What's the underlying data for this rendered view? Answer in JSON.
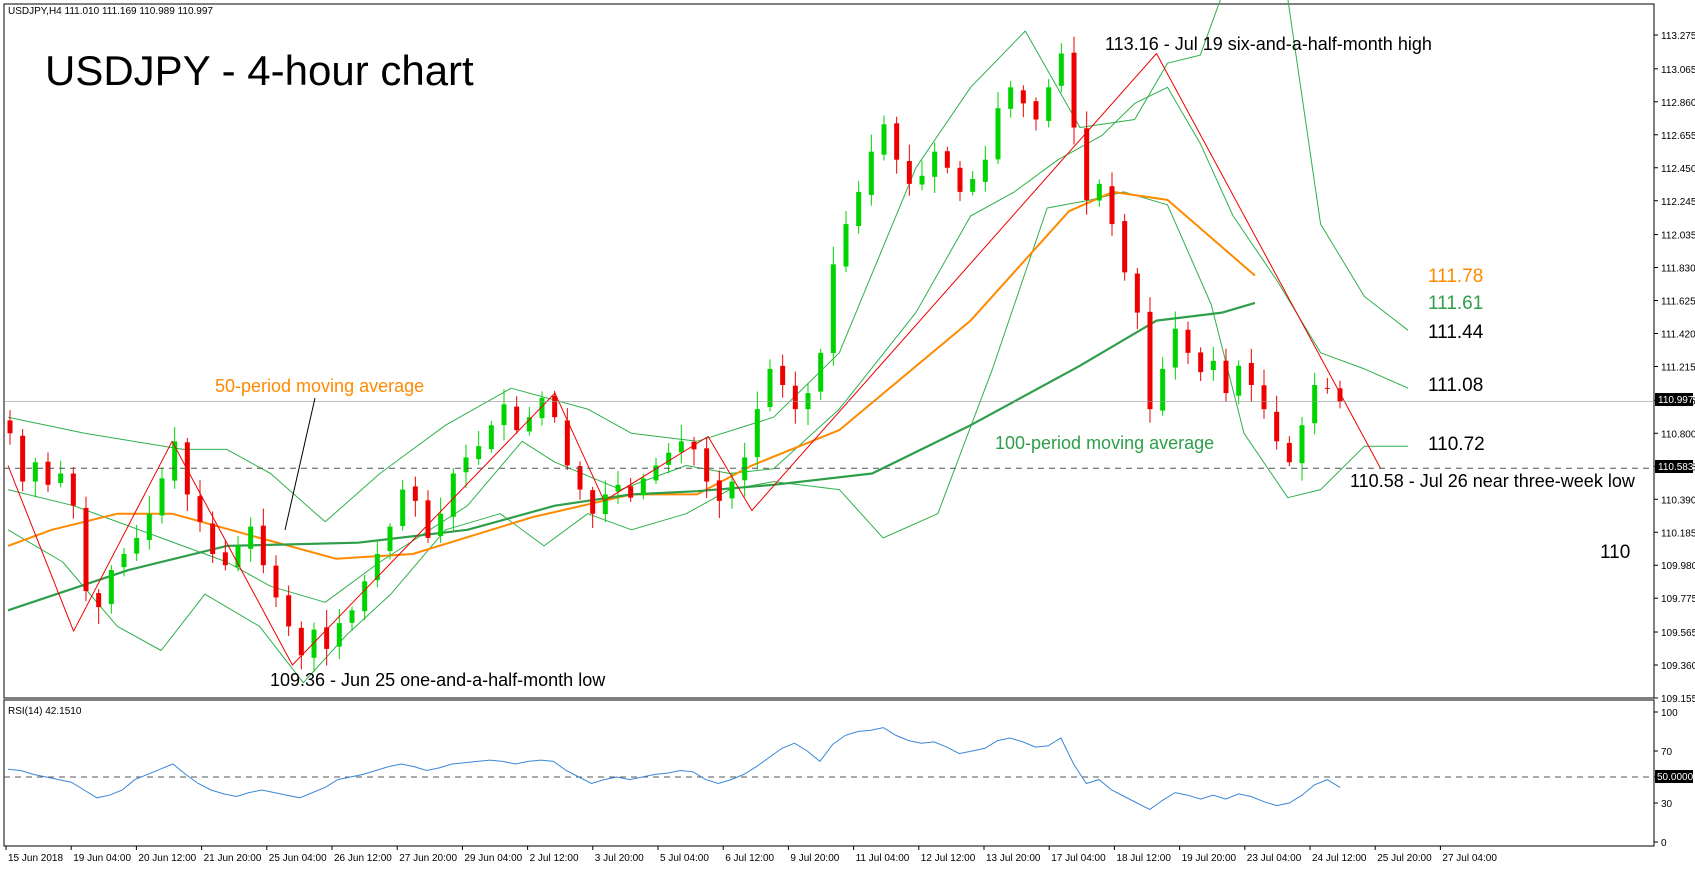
{
  "header": {
    "symbol_info": "USDJPY,H4  111.010 111.169 110.989 110.997",
    "title": "USDJPY - 4-hour chart"
  },
  "colors": {
    "bull": "#00d400",
    "bear": "#ee0000",
    "ma50": "#ff8a00",
    "ma100": "#2e9e4a",
    "bollinger": "#2eb04a",
    "rsi": "#3b87d6",
    "trendline": "#ee0000"
  },
  "annotations": {
    "high": "113.16 - Jul 19 six-and-a-half-month high",
    "low": "109.36 - Jun 25 one-and-a-half-month low",
    "near_low": "110.58 - Jul 26 near three-week low",
    "ma50_label": "50-period moving average",
    "ma100_label": "100-period moving average",
    "lvl_ma50": "111.78",
    "lvl_ma100": "111.61",
    "lvl_upper": "111.44",
    "lvl_mid": "111.08",
    "lvl_lower": "110.72",
    "lvl_110": "110"
  },
  "price_tags": {
    "current": "110.997",
    "line": "110.583"
  },
  "rsi": {
    "label": "RSI(14) 42.1510",
    "fifty_tag": "50.0000"
  },
  "chart_data": {
    "type": "candlestick",
    "title": "USDJPY - 4-hour chart",
    "y_ticks": [
      "113.275",
      "113.065",
      "112.860",
      "112.655",
      "112.450",
      "112.245",
      "112.035",
      "111.830",
      "111.625",
      "111.420",
      "111.215",
      "111.005",
      "110.800",
      "110.595",
      "110.390",
      "110.185",
      "109.980",
      "109.775",
      "109.565",
      "109.360",
      "109.155"
    ],
    "ylim": [
      109.155,
      113.275
    ],
    "x_ticks": [
      "15 Jun 2018",
      "19 Jun 04:00",
      "20 Jun 12:00",
      "21 Jun 20:00",
      "25 Jun 04:00",
      "26 Jun 12:00",
      "27 Jun 20:00",
      "29 Jun 04:00",
      "2 Jul 12:00",
      "3 Jul 20:00",
      "5 Jul 04:00",
      "6 Jul 12:00",
      "9 Jul 20:00",
      "11 Jul 04:00",
      "12 Jul 12:00",
      "13 Jul 20:00",
      "17 Jul 04:00",
      "18 Jul 12:00",
      "19 Jul 20:00",
      "23 Jul 04:00",
      "24 Jul 12:00",
      "25 Jul 20:00",
      "27 Jul 04:00"
    ],
    "close_path": [
      110.8,
      110.5,
      110.62,
      110.48,
      110.55,
      110.35,
      109.82,
      109.72,
      109.95,
      110.05,
      110.15,
      110.3,
      110.52,
      110.75,
      110.42,
      110.25,
      110.05,
      109.98,
      110.1,
      110.22,
      109.98,
      109.78,
      109.6,
      109.42,
      109.58,
      109.46,
      109.62,
      109.7,
      109.88,
      110.05,
      110.22,
      110.45,
      110.38,
      110.15,
      110.3,
      110.55,
      110.65,
      110.72,
      110.85,
      110.98,
      110.82,
      110.9,
      111.02,
      110.9,
      110.6,
      110.45,
      110.3,
      110.42,
      110.48,
      110.4,
      110.52,
      110.6,
      110.68,
      110.75,
      110.7,
      110.5,
      110.38,
      110.5,
      110.65,
      110.95,
      111.2,
      111.1,
      110.95,
      111.05,
      111.3,
      111.85,
      112.1,
      112.3,
      112.55,
      112.72,
      112.5,
      112.35,
      112.4,
      112.55,
      112.45,
      112.3,
      112.38,
      112.5,
      112.82,
      112.95,
      112.85,
      112.75,
      112.95,
      113.16,
      112.7,
      112.25,
      112.35,
      112.1,
      111.8,
      111.55,
      110.95,
      111.2,
      111.45,
      111.3,
      111.18,
      111.25,
      111.05,
      111.22,
      111.1,
      110.95,
      110.75,
      110.62,
      110.85,
      111.1,
      111.08,
      110.997
    ],
    "ma50": [
      [
        110.1,
        0
      ],
      [
        110.2,
        40
      ],
      [
        110.3,
        100
      ],
      [
        110.3,
        150
      ],
      [
        110.15,
        230
      ],
      [
        110.02,
        300
      ],
      [
        110.05,
        370
      ],
      [
        110.28,
        480
      ],
      [
        110.42,
        570
      ],
      [
        110.42,
        630
      ],
      [
        110.6,
        680
      ],
      [
        110.82,
        760
      ],
      [
        111.5,
        880
      ],
      [
        112.18,
        970
      ],
      [
        112.3,
        1010
      ],
      [
        112.25,
        1060
      ],
      [
        111.78,
        1140
      ]
    ],
    "ma100": [
      [
        109.7,
        0
      ],
      [
        109.95,
        110
      ],
      [
        110.1,
        200
      ],
      [
        110.12,
        320
      ],
      [
        110.2,
        420
      ],
      [
        110.35,
        500
      ],
      [
        110.42,
        570
      ],
      [
        110.44,
        630
      ],
      [
        110.48,
        700
      ],
      [
        110.55,
        790
      ],
      [
        110.85,
        880
      ],
      [
        111.22,
        980
      ],
      [
        111.5,
        1050
      ],
      [
        111.55,
        1110
      ],
      [
        111.61,
        1140
      ]
    ],
    "bb_upper": [
      [
        110.9,
        0
      ],
      [
        110.8,
        70
      ],
      [
        110.7,
        160
      ],
      [
        110.7,
        200
      ],
      [
        110.55,
        240
      ],
      [
        110.25,
        290
      ],
      [
        110.55,
        340
      ],
      [
        110.85,
        400
      ],
      [
        111.08,
        460
      ],
      [
        110.95,
        530
      ],
      [
        110.8,
        570
      ],
      [
        110.75,
        630
      ],
      [
        110.9,
        700
      ],
      [
        111.3,
        760
      ],
      [
        112.45,
        830
      ],
      [
        112.95,
        880
      ],
      [
        113.3,
        930
      ],
      [
        112.7,
        980
      ],
      [
        112.75,
        1030
      ],
      [
        113.1,
        1060
      ],
      [
        113.15,
        1090
      ],
      [
        113.9,
        1130
      ],
      [
        113.5,
        1170
      ],
      [
        112.1,
        1200
      ],
      [
        111.65,
        1240
      ],
      [
        111.44,
        1280
      ]
    ],
    "bb_mid": [
      [
        110.45,
        0
      ],
      [
        110.35,
        60
      ],
      [
        110.15,
        140
      ],
      [
        110.0,
        200
      ],
      [
        109.85,
        240
      ],
      [
        109.75,
        290
      ],
      [
        110.0,
        340
      ],
      [
        110.35,
        420
      ],
      [
        110.75,
        470
      ],
      [
        110.62,
        500
      ],
      [
        110.45,
        560
      ],
      [
        110.6,
        620
      ],
      [
        110.55,
        660
      ],
      [
        110.58,
        700
      ],
      [
        110.95,
        760
      ],
      [
        111.55,
        830
      ],
      [
        112.15,
        880
      ],
      [
        112.3,
        920
      ],
      [
        112.5,
        960
      ],
      [
        112.65,
        1000
      ],
      [
        112.85,
        1030
      ],
      [
        112.95,
        1060
      ],
      [
        112.6,
        1090
      ],
      [
        112.15,
        1120
      ],
      [
        111.75,
        1160
      ],
      [
        111.3,
        1200
      ],
      [
        111.2,
        1240
      ],
      [
        111.08,
        1280
      ]
    ],
    "bb_lower": [
      [
        110.2,
        0
      ],
      [
        110.0,
        50
      ],
      [
        109.6,
        100
      ],
      [
        109.45,
        140
      ],
      [
        109.8,
        180
      ],
      [
        109.6,
        230
      ],
      [
        109.25,
        270
      ],
      [
        109.55,
        310
      ],
      [
        109.8,
        350
      ],
      [
        110.2,
        400
      ],
      [
        110.3,
        450
      ],
      [
        110.1,
        490
      ],
      [
        110.3,
        530
      ],
      [
        110.2,
        570
      ],
      [
        110.3,
        620
      ],
      [
        110.45,
        660
      ],
      [
        110.5,
        700
      ],
      [
        110.45,
        760
      ],
      [
        110.15,
        800
      ],
      [
        110.3,
        850
      ],
      [
        111.2,
        900
      ],
      [
        112.2,
        950
      ],
      [
        112.25,
        990
      ],
      [
        112.3,
        1020
      ],
      [
        112.22,
        1060
      ],
      [
        111.6,
        1100
      ],
      [
        110.8,
        1130
      ],
      [
        110.4,
        1170
      ],
      [
        110.45,
        1200
      ],
      [
        110.72,
        1240
      ],
      [
        110.72,
        1280
      ]
    ],
    "trend_zigzag": [
      [
        110.6,
        0
      ],
      [
        109.57,
        60
      ],
      [
        110.75,
        150
      ],
      [
        109.36,
        260
      ],
      [
        111.05,
        500
      ],
      [
        110.38,
        545
      ],
      [
        110.78,
        640
      ],
      [
        110.32,
        680
      ],
      [
        113.16,
        1050
      ],
      [
        110.58,
        1255
      ]
    ],
    "rsi_values": [
      56,
      55,
      52,
      50,
      48,
      46,
      40,
      34,
      36,
      40,
      48,
      52,
      56,
      60,
      52,
      45,
      40,
      37,
      35,
      38,
      40,
      38,
      36,
      34,
      38,
      42,
      48,
      50,
      52,
      55,
      58,
      60,
      58,
      55,
      57,
      60,
      61,
      62,
      63,
      62,
      60,
      62,
      63,
      62,
      55,
      50,
      45,
      48,
      50,
      48,
      50,
      52,
      53,
      55,
      54,
      48,
      45,
      48,
      52,
      58,
      65,
      72,
      76,
      70,
      62,
      75,
      82,
      85,
      86,
      88,
      82,
      78,
      76,
      77,
      73,
      68,
      70,
      72,
      78,
      80,
      77,
      73,
      74,
      80,
      60,
      45,
      48,
      40,
      35,
      30,
      25,
      32,
      38,
      36,
      33,
      36,
      33,
      37,
      35,
      31,
      28,
      30,
      36,
      44,
      48,
      42
    ],
    "rsi_ylim": [
      0,
      100
    ],
    "rsi_ticks": [
      "100",
      "70",
      "50",
      "30",
      "0"
    ]
  }
}
